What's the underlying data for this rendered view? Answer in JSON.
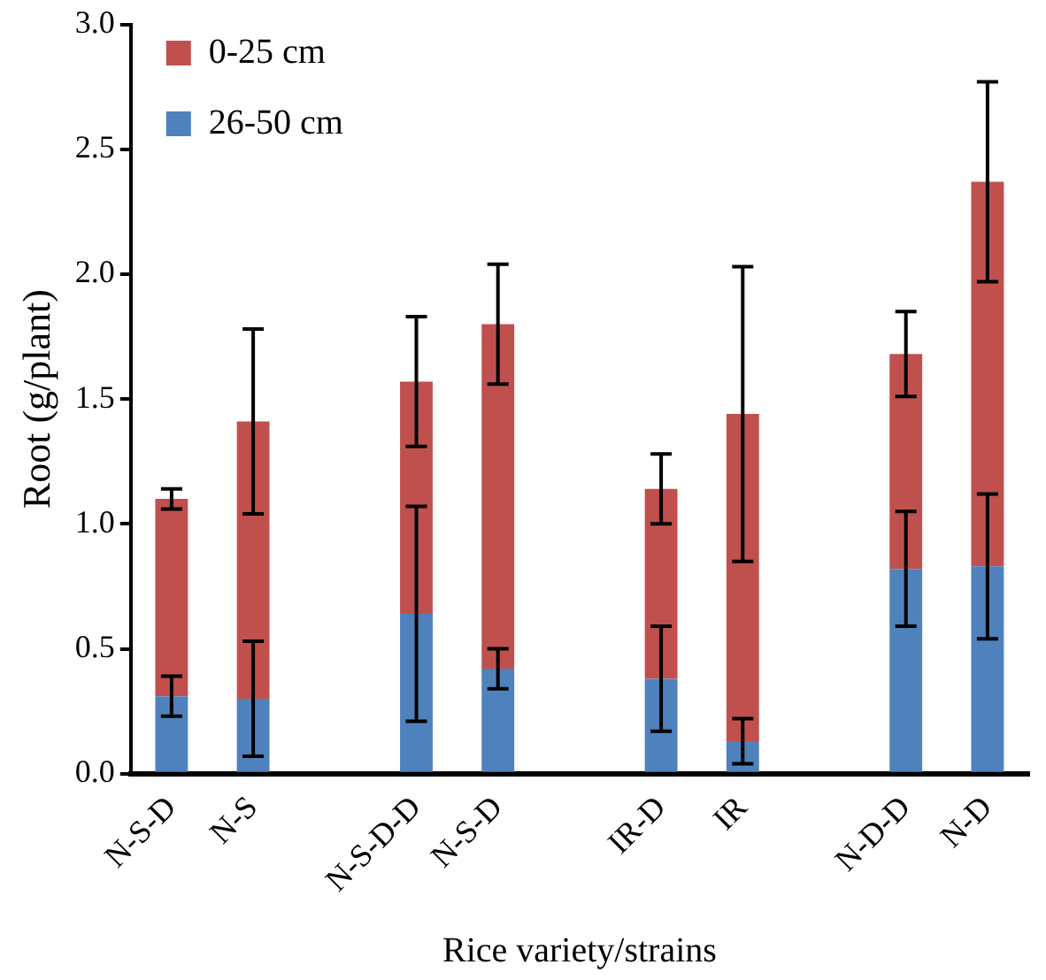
{
  "chart_data": {
    "type": "bar",
    "stacked": true,
    "xlabel": "Rice variety/strains",
    "ylabel": "Root (g/plant)",
    "categories": [
      "N-S-D",
      "N-S",
      null,
      "N-S-D-D",
      "N-S-D",
      null,
      "IR-D",
      "IR",
      null,
      "N-D-D",
      "N-D"
    ],
    "series": [
      {
        "name": "26-50 cm",
        "color": "#4f81bd",
        "values": [
          0.31,
          0.3,
          null,
          0.64,
          0.42,
          null,
          0.38,
          0.13,
          null,
          0.82,
          0.83
        ],
        "errors": [
          0.08,
          0.23,
          null,
          0.43,
          0.08,
          null,
          0.21,
          0.09,
          null,
          0.23,
          0.29
        ]
      },
      {
        "name": "0-25 cm",
        "color": "#c0504d",
        "values": [
          0.79,
          1.11,
          null,
          0.93,
          1.38,
          null,
          0.76,
          1.31,
          null,
          0.86,
          1.54
        ],
        "errors": [
          0.04,
          0.37,
          null,
          0.26,
          0.24,
          null,
          0.14,
          0.59,
          null,
          0.17,
          0.4
        ]
      }
    ],
    "ylim": [
      0,
      3
    ],
    "yticks": [
      {
        "value": 0,
        "label": "0.0"
      },
      {
        "value": 0.5,
        "label": "0.5"
      },
      {
        "value": 1,
        "label": "1.0"
      },
      {
        "value": 1.5,
        "label": "1.5"
      },
      {
        "value": 2,
        "label": "2.0"
      },
      {
        "value": 2.5,
        "label": "2.5"
      },
      {
        "value": 3,
        "label": "3.0"
      }
    ],
    "grid": false,
    "legend": "top left"
  }
}
